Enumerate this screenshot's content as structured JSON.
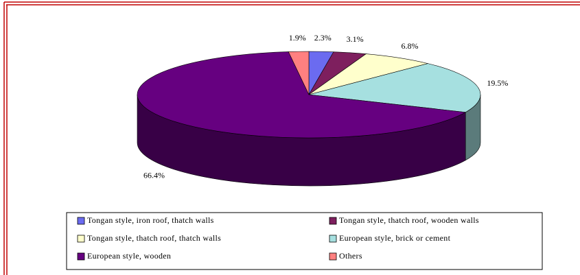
{
  "chart_data": {
    "type": "pie3d",
    "categories": [
      "Tongan style, iron roof, thatch walls",
      "Tongan style, thatch roof, wooden walls",
      "Tongan style, thatch roof, thatch walls",
      "European style, brick or cement",
      "European style, wooden",
      "Others"
    ],
    "values": [
      2.3,
      3.1,
      6.8,
      19.5,
      66.4,
      1.9
    ],
    "value_labels": [
      "2.3%",
      "3.1%",
      "6.8%",
      "19.5%",
      "66.4%",
      "1.9%"
    ],
    "colors": [
      "#6b6bf0",
      "#7e1f5e",
      "#ffffcc",
      "#a6e0e0",
      "#660080",
      "#ff8080"
    ],
    "legend_position": "bottom"
  }
}
